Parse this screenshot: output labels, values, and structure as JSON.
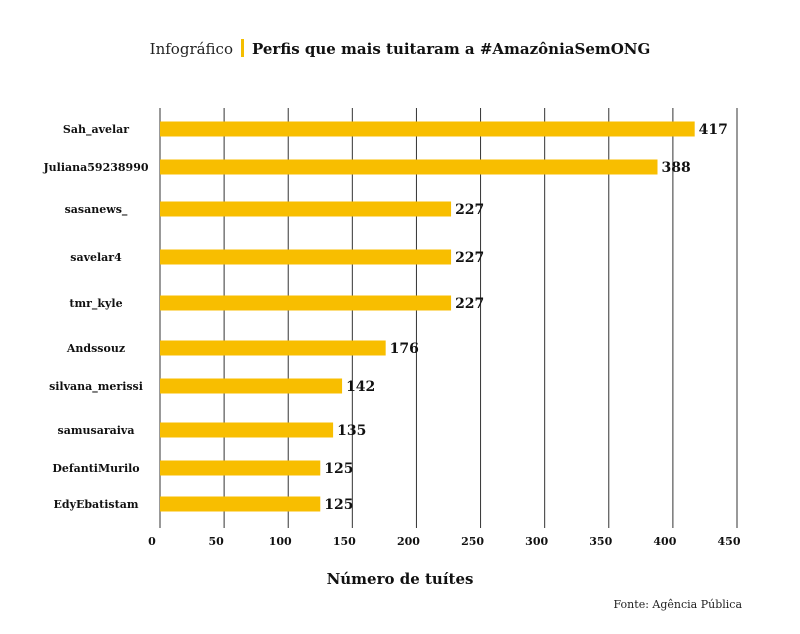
{
  "header": {
    "kicker": "Infográfico",
    "title": "Perfis que mais tuitaram a #AmazôniaSemONG"
  },
  "source": "Fonte: Agência Pública",
  "colors": {
    "bar": "#F8BE00",
    "grid": "#333333",
    "accent": "#F4BE00"
  },
  "chart_data": {
    "type": "bar",
    "orientation": "horizontal",
    "title": "Perfis que mais tuitaram a #AmazôniaSemONG",
    "xlabel": "Número de tuítes",
    "ylabel": "",
    "categories": [
      "Sah_avelar",
      "Juliana59238990",
      "sasanews_",
      "savelar4",
      "tmr_kyle",
      "Andssouz",
      "silvana_merissi",
      "samusaraiva",
      "DefantiMurilo",
      "EdyEbatistam"
    ],
    "values": [
      417,
      388,
      227,
      227,
      227,
      176,
      142,
      135,
      125,
      125
    ],
    "xlim": [
      0,
      450
    ],
    "xticks": [
      0,
      50,
      100,
      150,
      200,
      250,
      300,
      350,
      400,
      450
    ],
    "grid": "vertical",
    "legend": "none"
  }
}
